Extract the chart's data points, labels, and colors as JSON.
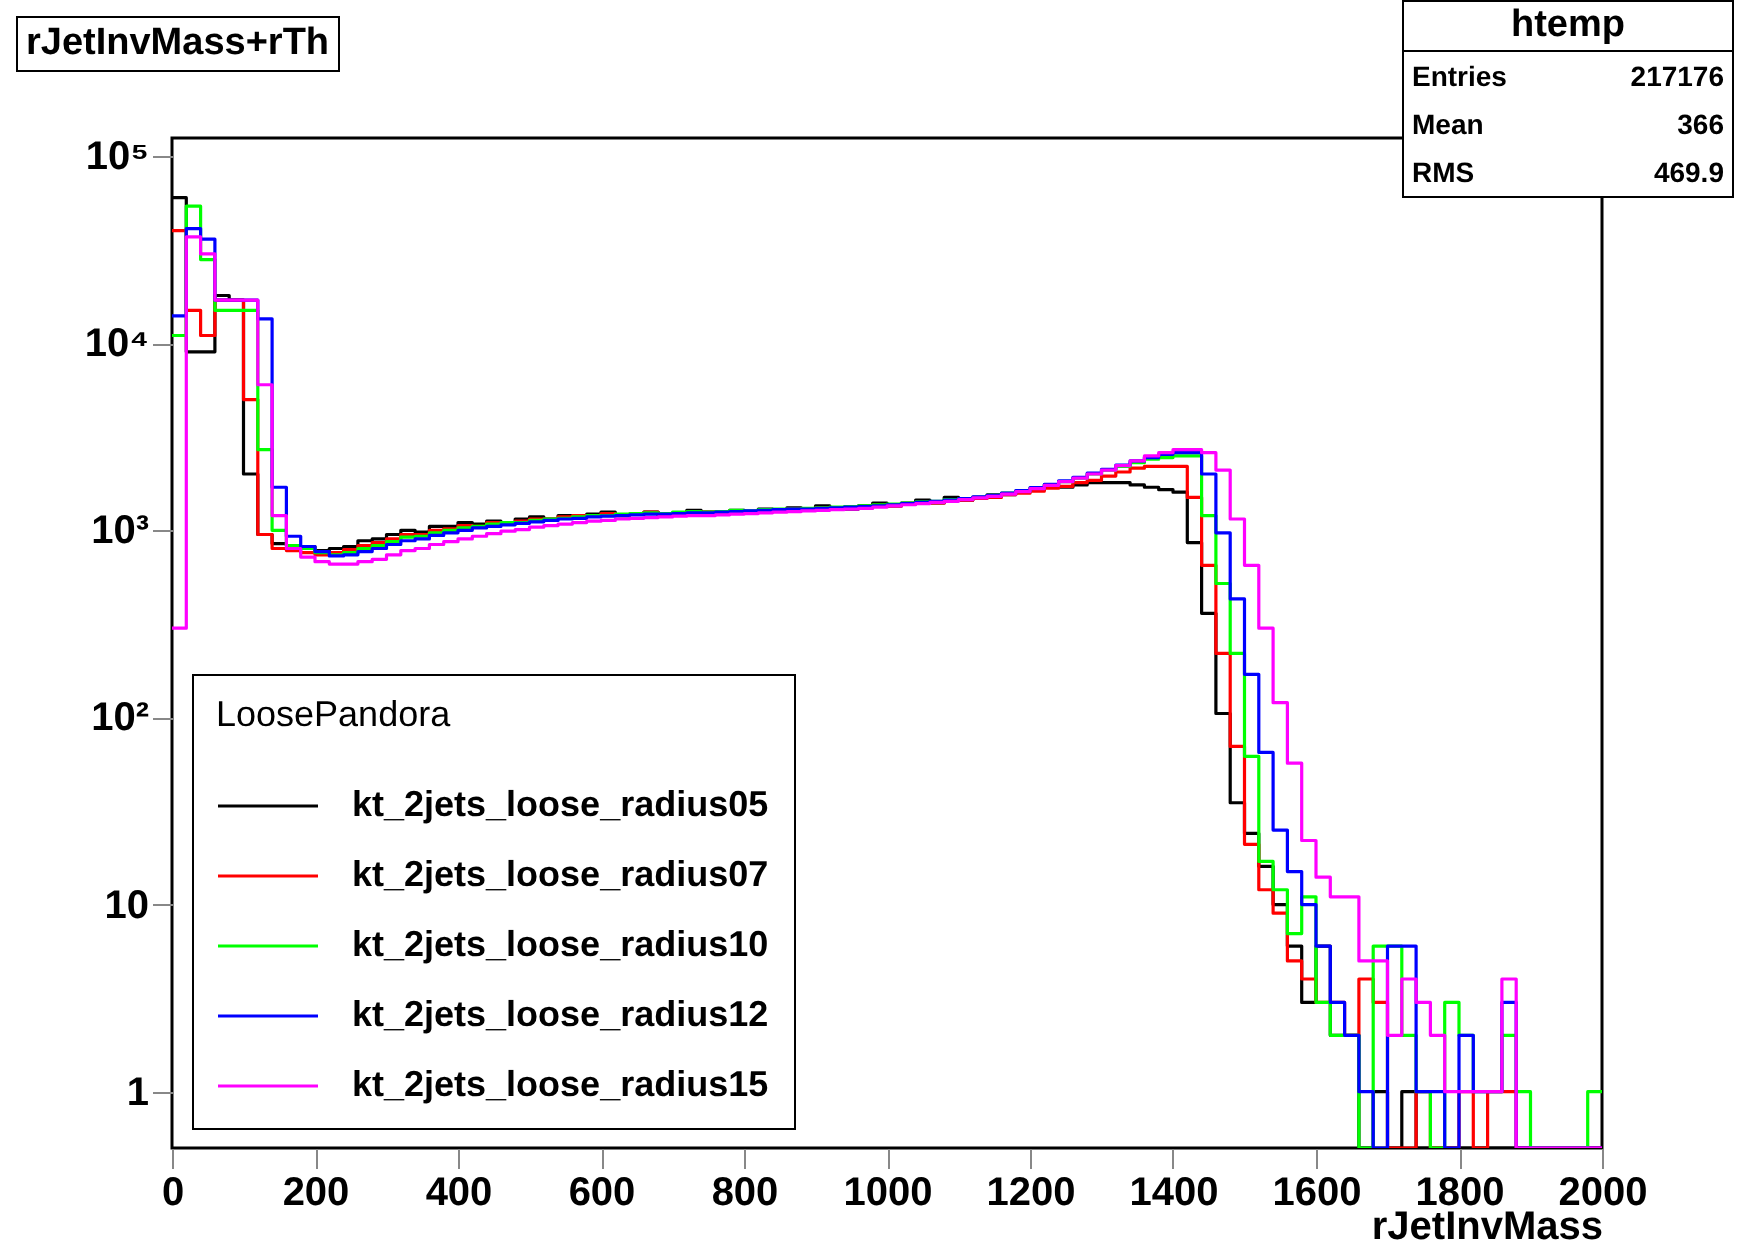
{
  "chart_data": {
    "type": "histogram",
    "title": "rJetInvMass+rTh",
    "xlabel": "rJetInvMass",
    "legend_title": "LoosePandora",
    "annotations": [
      "htemp",
      "Entries 217176",
      "Mean 366",
      "RMS 469.9"
    ],
    "bins": [
      0,
      20,
      40,
      60,
      80,
      100,
      120,
      140,
      160,
      180,
      200,
      220,
      240,
      260,
      280,
      300,
      320,
      340,
      360,
      380,
      400,
      420,
      440,
      460,
      480,
      500,
      520,
      540,
      560,
      580,
      600,
      620,
      640,
      660,
      680,
      700,
      720,
      740,
      760,
      780,
      800,
      820,
      840,
      860,
      880,
      900,
      920,
      940,
      960,
      980,
      1000,
      1020,
      1040,
      1060,
      1080,
      1100,
      1120,
      1140,
      1160,
      1180,
      1200,
      1220,
      1240,
      1260,
      1280,
      1300,
      1320,
      1340,
      1360,
      1380,
      1400,
      1420,
      1440,
      1460,
      1480,
      1500,
      1520,
      1540,
      1560,
      1580,
      1600,
      1620,
      1640,
      1660,
      1680,
      1700,
      1720,
      1740,
      1760,
      1780,
      1800,
      1820,
      1840,
      1860,
      1880,
      1900,
      1920,
      1940,
      1960,
      1980,
      2000
    ],
    "series": [
      {
        "name": "kt_2jets_loose_radius05",
        "color": "#000000",
        "values": [
          60000,
          9000,
          9000,
          18000,
          17000,
          2000,
          950,
          850,
          830,
          820,
          780,
          800,
          820,
          880,
          900,
          950,
          1000,
          980,
          1050,
          1050,
          1100,
          1080,
          1120,
          1100,
          1150,
          1180,
          1150,
          1200,
          1180,
          1220,
          1250,
          1200,
          1220,
          1250,
          1200,
          1230,
          1280,
          1250,
          1230,
          1280,
          1250,
          1300,
          1270,
          1320,
          1280,
          1350,
          1300,
          1300,
          1350,
          1400,
          1350,
          1400,
          1450,
          1400,
          1500,
          1450,
          1500,
          1550,
          1550,
          1600,
          1650,
          1700,
          1700,
          1750,
          1800,
          1800,
          1800,
          1750,
          1700,
          1650,
          1600,
          860,
          360,
          105,
          35,
          24,
          16,
          10,
          6,
          3,
          6,
          2,
          2,
          null,
          1,
          null,
          1,
          null,
          null,
          null,
          null,
          null,
          null,
          null,
          null,
          null,
          null,
          null,
          null,
          null
        ]
      },
      {
        "name": "kt_2jets_loose_radius07",
        "color": "#ff0000",
        "values": [
          40000,
          15000,
          11000,
          17000,
          17000,
          5000,
          950,
          800,
          780,
          760,
          740,
          760,
          790,
          830,
          860,
          900,
          950,
          950,
          1000,
          1020,
          1060,
          1050,
          1100,
          1100,
          1120,
          1150,
          1150,
          1180,
          1200,
          1200,
          1230,
          1200,
          1220,
          1250,
          1220,
          1230,
          1260,
          1250,
          1240,
          1270,
          1260,
          1280,
          1280,
          1300,
          1290,
          1320,
          1300,
          1320,
          1340,
          1360,
          1350,
          1380,
          1400,
          1400,
          1450,
          1450,
          1480,
          1500,
          1550,
          1580,
          1620,
          1680,
          1720,
          1800,
          1850,
          1950,
          2050,
          2150,
          2200,
          2200,
          2200,
          1500,
          650,
          220,
          70,
          21,
          12,
          9,
          5,
          4,
          3,
          3,
          2,
          4,
          3,
          null,
          null,
          1,
          null,
          null,
          1,
          null,
          1,
          1,
          null,
          null,
          null,
          null,
          null,
          null
        ]
      },
      {
        "name": "kt_2jets_loose_radius10",
        "color": "#00ff00",
        "values": [
          11000,
          54000,
          28000,
          15000,
          15000,
          15000,
          2700,
          1000,
          830,
          800,
          760,
          740,
          760,
          800,
          830,
          870,
          920,
          930,
          970,
          1000,
          1030,
          1050,
          1080,
          1100,
          1100,
          1130,
          1150,
          1160,
          1180,
          1200,
          1200,
          1220,
          1230,
          1240,
          1230,
          1250,
          1260,
          1250,
          1260,
          1280,
          1270,
          1290,
          1300,
          1300,
          1310,
          1320,
          1330,
          1340,
          1350,
          1370,
          1380,
          1400,
          1420,
          1430,
          1460,
          1480,
          1500,
          1540,
          1580,
          1620,
          1680,
          1750,
          1820,
          1900,
          2000,
          2100,
          2200,
          2300,
          2400,
          2450,
          2500,
          2500,
          1200,
          520,
          220,
          62,
          17,
          12,
          7,
          11,
          3,
          2,
          2,
          null,
          6,
          6,
          2,
          1,
          null,
          3,
          2,
          1,
          1,
          2,
          1,
          null,
          null,
          null,
          null,
          1
        ]
      },
      {
        "name": "kt_2jets_loose_radius12",
        "color": "#0000ff",
        "values": [
          14000,
          41000,
          36000,
          17000,
          17000,
          17000,
          13500,
          1700,
          930,
          820,
          770,
          730,
          740,
          770,
          800,
          840,
          880,
          900,
          940,
          970,
          1000,
          1030,
          1050,
          1070,
          1090,
          1110,
          1130,
          1150,
          1160,
          1180,
          1190,
          1200,
          1210,
          1220,
          1220,
          1230,
          1240,
          1240,
          1250,
          1260,
          1270,
          1280,
          1290,
          1300,
          1300,
          1310,
          1320,
          1330,
          1340,
          1350,
          1370,
          1390,
          1410,
          1430,
          1450,
          1480,
          1510,
          1540,
          1580,
          1630,
          1690,
          1760,
          1840,
          1920,
          2020,
          2120,
          2230,
          2350,
          2450,
          2550,
          2600,
          2600,
          2000,
          970,
          430,
          170,
          65,
          25,
          15,
          10,
          6,
          3,
          2,
          1,
          null,
          6,
          6,
          1,
          1,
          null,
          2,
          1,
          1,
          3,
          null,
          null,
          null,
          null,
          null,
          null
        ]
      },
      {
        "name": "kt_2jets_loose_radius15",
        "color": "#ff00ff",
        "values": [
          300,
          37000,
          30000,
          17000,
          17000,
          17000,
          6000,
          1200,
          800,
          720,
          680,
          660,
          660,
          680,
          700,
          740,
          780,
          800,
          840,
          870,
          900,
          930,
          960,
          990,
          1010,
          1040,
          1060,
          1080,
          1100,
          1120,
          1130,
          1150,
          1160,
          1170,
          1180,
          1190,
          1200,
          1200,
          1210,
          1220,
          1230,
          1240,
          1250,
          1260,
          1270,
          1280,
          1290,
          1300,
          1310,
          1330,
          1350,
          1370,
          1390,
          1410,
          1430,
          1460,
          1490,
          1520,
          1560,
          1610,
          1670,
          1740,
          1820,
          1900,
          2000,
          2100,
          2220,
          2350,
          2500,
          2600,
          2700,
          2700,
          2600,
          2100,
          1150,
          650,
          300,
          120,
          57,
          22,
          14,
          11,
          11,
          5,
          5,
          2,
          4,
          3,
          2,
          1,
          1,
          1,
          1,
          4,
          null,
          null,
          null,
          null,
          null,
          null
        ]
      }
    ],
    "xlim": [
      0,
      2000
    ],
    "xticks": [
      0,
      200,
      400,
      600,
      800,
      1000,
      1200,
      1400,
      1600,
      1800,
      2000
    ],
    "ylim": [
      0.5,
      125000
    ],
    "yticks": [
      1,
      10,
      {
        "value": 100,
        "label": "10²"
      },
      {
        "value": 1000,
        "label": "10³"
      },
      {
        "value": 10000,
        "label": "10⁴"
      },
      {
        "value": 100000,
        "label": "10⁵"
      }
    ],
    "log": "y",
    "grid": false,
    "legend": "bottom left"
  }
}
